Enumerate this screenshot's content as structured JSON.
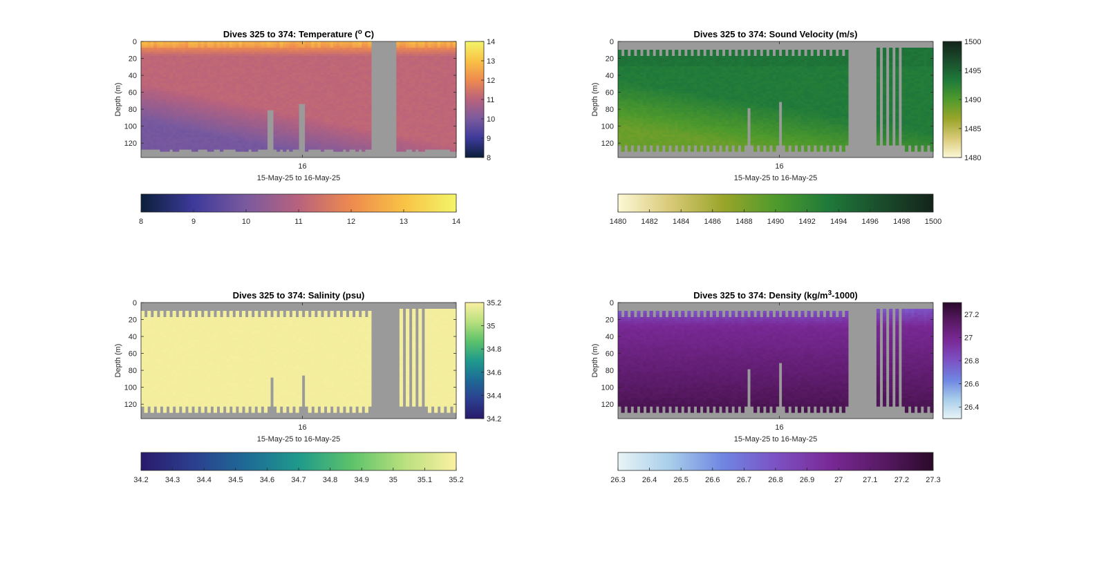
{
  "colors": {
    "nodata": "#9a9a9a",
    "axis": "#262626"
  },
  "chart_data": [
    {
      "type": "heatmap",
      "id": "temperature",
      "title_prefix": "Dives 325 to 374: Temperature (",
      "title_sup": "o",
      "title_suffix": " C)",
      "ylabel": "Depth (m)",
      "xlabel": "15-May-25 to 16-May-25",
      "x_ticks": [
        "16"
      ],
      "y_ticks": [
        "0",
        "20",
        "40",
        "60",
        "80",
        "100",
        "120"
      ],
      "ylim": [
        0,
        137
      ],
      "clim": [
        8,
        14
      ],
      "colormap": [
        "#0b1f3a",
        "#3d3a9a",
        "#7a5a9e",
        "#b8627d",
        "#ee8a4f",
        "#f9c245",
        "#f3f56a"
      ],
      "colorbar_right_ticks": [
        "14",
        "13",
        "12",
        "11",
        "10",
        "9",
        "8"
      ],
      "colorbar_bottom_ticks": [
        "8",
        "9",
        "10",
        "11",
        "12",
        "13",
        "14"
      ]
    },
    {
      "type": "heatmap",
      "id": "sound_velocity",
      "title_prefix": "Dives 325 to 374: Sound Velocity (m/s)",
      "title_sup": "",
      "title_suffix": "",
      "ylabel": "Depth (m)",
      "xlabel": "15-May-25 to 16-May-25",
      "x_ticks": [
        "16"
      ],
      "y_ticks": [
        "0",
        "20",
        "40",
        "60",
        "80",
        "100",
        "120"
      ],
      "ylim": [
        0,
        137
      ],
      "clim": [
        1480,
        1500
      ],
      "colormap": [
        "#fdf8d6",
        "#d8c977",
        "#9aa52a",
        "#4f9a2c",
        "#1f7a3a",
        "#1a4d2c",
        "#14241a"
      ],
      "colorbar_right_ticks": [
        "1500",
        "1495",
        "1490",
        "1485",
        "1480"
      ],
      "colorbar_bottom_ticks": [
        "1480",
        "1482",
        "1484",
        "1486",
        "1488",
        "1490",
        "1492",
        "1494",
        "1496",
        "1498",
        "1500"
      ]
    },
    {
      "type": "heatmap",
      "id": "salinity",
      "title_prefix": "Dives 325 to 374: Salinity (psu)",
      "title_sup": "",
      "title_suffix": "",
      "ylabel": "Depth (m)",
      "xlabel": "15-May-25 to 16-May-25",
      "x_ticks": [
        "16"
      ],
      "y_ticks": [
        "0",
        "20",
        "40",
        "60",
        "80",
        "100",
        "120"
      ],
      "ylim": [
        0,
        137
      ],
      "clim": [
        34.2,
        35.2
      ],
      "colormap": [
        "#2a1a6b",
        "#2b3f8f",
        "#1e6a96",
        "#1f9a8c",
        "#5cc26a",
        "#b8e07e",
        "#fbf0a2"
      ],
      "colorbar_right_ticks": [
        "35.2",
        "35",
        "34.8",
        "34.6",
        "34.4",
        "34.2"
      ],
      "colorbar_bottom_ticks": [
        "34.2",
        "34.3",
        "34.4",
        "34.5",
        "34.6",
        "34.7",
        "34.8",
        "34.9",
        "35",
        "35.1",
        "35.2"
      ]
    },
    {
      "type": "heatmap",
      "id": "density",
      "title_prefix": "Dives 325 to 374: Density (kg/m",
      "title_sup": "3",
      "title_suffix": "-1000)",
      "ylabel": "Depth (m)",
      "xlabel": "15-May-25 to 16-May-25",
      "x_ticks": [
        "16"
      ],
      "y_ticks": [
        "0",
        "20",
        "40",
        "60",
        "80",
        "100",
        "120"
      ],
      "ylim": [
        0,
        137
      ],
      "clim": [
        26.3,
        27.3
      ],
      "colormap": [
        "#e8f4f6",
        "#a7cdea",
        "#6f86e2",
        "#7c52c4",
        "#7a2a98",
        "#5a1a66",
        "#2a0a2a"
      ],
      "colorbar_right_ticks": [
        "27.2",
        "27",
        "26.8",
        "26.6",
        "26.4"
      ],
      "colorbar_bottom_ticks": [
        "26.3",
        "26.4",
        "26.5",
        "26.6",
        "26.7",
        "26.8",
        "26.9",
        "27",
        "27.1",
        "27.2",
        "27.3"
      ]
    }
  ]
}
